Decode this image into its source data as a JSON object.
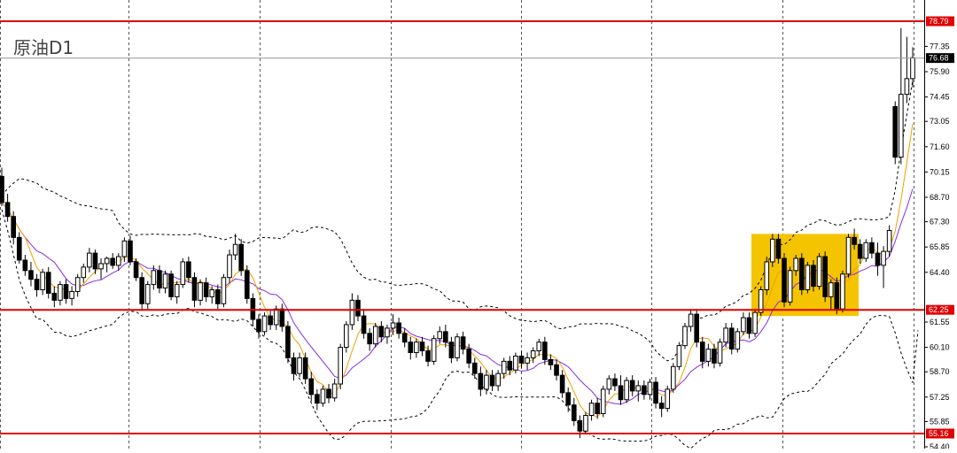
{
  "title": "原油D1",
  "chart_data": {
    "type": "candlestick",
    "symbol": "原油",
    "timeframe": "D1",
    "ylim": [
      54.4,
      78.79
    ],
    "y_ticks": [
      "77.35",
      "75.90",
      "74.45",
      "73.05",
      "71.60",
      "70.15",
      "68.70",
      "67.30",
      "65.85",
      "64.40",
      "61.55",
      "60.10",
      "58.70",
      "57.25",
      "55.85",
      "54.40"
    ],
    "horizontal_levels": [
      {
        "value": "78.79",
        "color": "#e00000"
      },
      {
        "value": "62.25",
        "color": "#e00000"
      },
      {
        "value": "55.16",
        "color": "#e00000"
      }
    ],
    "current_price": "76.68",
    "highlight_box": {
      "y_range": [
        61.9,
        66.6
      ],
      "color": "#f5c400"
    },
    "indicators": [
      "Bollinger Bands",
      "MA fast (orange)",
      "MA slow (purple)"
    ],
    "candles": [
      {
        "o": 69.9,
        "h": 70.4,
        "l": 68.2,
        "c": 68.4
      },
      {
        "o": 68.4,
        "h": 68.9,
        "l": 67.3,
        "c": 67.6
      },
      {
        "o": 67.6,
        "h": 67.9,
        "l": 66.0,
        "c": 66.4
      },
      {
        "o": 66.4,
        "h": 66.7,
        "l": 64.9,
        "c": 65.1
      },
      {
        "o": 65.1,
        "h": 65.4,
        "l": 64.2,
        "c": 64.5
      },
      {
        "o": 64.5,
        "h": 65.0,
        "l": 63.6,
        "c": 64.0
      },
      {
        "o": 64.0,
        "h": 64.3,
        "l": 63.0,
        "c": 63.4
      },
      {
        "o": 63.4,
        "h": 64.6,
        "l": 63.1,
        "c": 64.4
      },
      {
        "o": 64.4,
        "h": 64.7,
        "l": 62.9,
        "c": 63.2
      },
      {
        "o": 63.2,
        "h": 63.6,
        "l": 62.4,
        "c": 62.8
      },
      {
        "o": 62.8,
        "h": 63.9,
        "l": 62.5,
        "c": 63.7
      },
      {
        "o": 63.7,
        "h": 64.0,
        "l": 62.6,
        "c": 62.9
      },
      {
        "o": 62.9,
        "h": 63.6,
        "l": 62.5,
        "c": 63.3
      },
      {
        "o": 63.3,
        "h": 64.3,
        "l": 63.0,
        "c": 64.1
      },
      {
        "o": 64.1,
        "h": 64.9,
        "l": 63.8,
        "c": 64.7
      },
      {
        "o": 64.7,
        "h": 65.8,
        "l": 64.4,
        "c": 65.5
      },
      {
        "o": 65.5,
        "h": 65.7,
        "l": 64.3,
        "c": 64.6
      },
      {
        "o": 64.6,
        "h": 65.2,
        "l": 64.0,
        "c": 64.9
      },
      {
        "o": 64.9,
        "h": 65.3,
        "l": 64.4,
        "c": 65.2
      },
      {
        "o": 65.2,
        "h": 65.5,
        "l": 64.6,
        "c": 64.8
      },
      {
        "o": 64.8,
        "h": 65.5,
        "l": 64.5,
        "c": 65.3
      },
      {
        "o": 65.3,
        "h": 66.4,
        "l": 65.0,
        "c": 66.2
      },
      {
        "o": 66.2,
        "h": 66.5,
        "l": 64.8,
        "c": 65.0
      },
      {
        "o": 65.0,
        "h": 65.2,
        "l": 63.9,
        "c": 64.1
      },
      {
        "o": 64.1,
        "h": 64.4,
        "l": 62.2,
        "c": 62.6
      },
      {
        "o": 62.6,
        "h": 63.9,
        "l": 62.3,
        "c": 63.7
      },
      {
        "o": 63.7,
        "h": 64.8,
        "l": 63.4,
        "c": 64.5
      },
      {
        "o": 64.5,
        "h": 64.8,
        "l": 63.2,
        "c": 63.5
      },
      {
        "o": 63.5,
        "h": 64.5,
        "l": 63.2,
        "c": 64.3
      },
      {
        "o": 64.3,
        "h": 64.5,
        "l": 62.8,
        "c": 63.0
      },
      {
        "o": 63.0,
        "h": 63.9,
        "l": 62.6,
        "c": 63.7
      },
      {
        "o": 63.7,
        "h": 65.2,
        "l": 63.5,
        "c": 65.0
      },
      {
        "o": 65.0,
        "h": 65.3,
        "l": 63.8,
        "c": 64.1
      },
      {
        "o": 64.1,
        "h": 64.4,
        "l": 62.4,
        "c": 62.8
      },
      {
        "o": 62.8,
        "h": 64.0,
        "l": 62.5,
        "c": 63.8
      },
      {
        "o": 63.8,
        "h": 64.1,
        "l": 62.7,
        "c": 63.0
      },
      {
        "o": 63.0,
        "h": 63.6,
        "l": 62.6,
        "c": 63.4
      },
      {
        "o": 63.4,
        "h": 63.7,
        "l": 62.3,
        "c": 62.6
      },
      {
        "o": 62.6,
        "h": 64.3,
        "l": 62.4,
        "c": 64.1
      },
      {
        "o": 64.1,
        "h": 65.7,
        "l": 63.8,
        "c": 65.4
      },
      {
        "o": 65.4,
        "h": 66.6,
        "l": 65.1,
        "c": 66.0
      },
      {
        "o": 66.0,
        "h": 66.3,
        "l": 64.2,
        "c": 64.5
      },
      {
        "o": 64.5,
        "h": 64.8,
        "l": 62.6,
        "c": 62.9
      },
      {
        "o": 62.9,
        "h": 63.2,
        "l": 61.3,
        "c": 61.7
      },
      {
        "o": 61.7,
        "h": 62.0,
        "l": 60.6,
        "c": 61.0
      },
      {
        "o": 61.0,
        "h": 62.1,
        "l": 60.8,
        "c": 61.9
      },
      {
        "o": 61.9,
        "h": 62.2,
        "l": 61.1,
        "c": 61.4
      },
      {
        "o": 61.4,
        "h": 62.5,
        "l": 61.1,
        "c": 62.3
      },
      {
        "o": 62.3,
        "h": 62.6,
        "l": 61.0,
        "c": 61.3
      },
      {
        "o": 61.3,
        "h": 61.6,
        "l": 59.2,
        "c": 59.5
      },
      {
        "o": 59.5,
        "h": 59.8,
        "l": 58.2,
        "c": 58.6
      },
      {
        "o": 58.6,
        "h": 59.8,
        "l": 58.4,
        "c": 59.5
      },
      {
        "o": 59.5,
        "h": 59.8,
        "l": 58.0,
        "c": 58.3
      },
      {
        "o": 58.3,
        "h": 58.7,
        "l": 57.0,
        "c": 57.4
      },
      {
        "o": 57.4,
        "h": 57.7,
        "l": 56.5,
        "c": 56.9
      },
      {
        "o": 56.9,
        "h": 57.9,
        "l": 56.7,
        "c": 57.7
      },
      {
        "o": 57.7,
        "h": 58.0,
        "l": 56.9,
        "c": 57.2
      },
      {
        "o": 57.2,
        "h": 58.3,
        "l": 57.0,
        "c": 58.0
      },
      {
        "o": 58.0,
        "h": 60.3,
        "l": 57.7,
        "c": 60.1
      },
      {
        "o": 60.1,
        "h": 61.6,
        "l": 59.8,
        "c": 61.4
      },
      {
        "o": 61.4,
        "h": 63.2,
        "l": 61.1,
        "c": 62.8
      },
      {
        "o": 62.8,
        "h": 63.1,
        "l": 61.6,
        "c": 61.9
      },
      {
        "o": 61.9,
        "h": 62.3,
        "l": 60.6,
        "c": 60.9
      },
      {
        "o": 60.9,
        "h": 61.2,
        "l": 59.9,
        "c": 60.3
      },
      {
        "o": 60.3,
        "h": 61.5,
        "l": 60.1,
        "c": 61.3
      },
      {
        "o": 61.3,
        "h": 61.6,
        "l": 60.4,
        "c": 60.7
      },
      {
        "o": 60.7,
        "h": 61.4,
        "l": 60.3,
        "c": 61.2
      },
      {
        "o": 61.2,
        "h": 62.0,
        "l": 60.8,
        "c": 61.5
      },
      {
        "o": 61.5,
        "h": 61.8,
        "l": 60.6,
        "c": 60.9
      },
      {
        "o": 60.9,
        "h": 61.2,
        "l": 60.1,
        "c": 60.4
      },
      {
        "o": 60.4,
        "h": 60.7,
        "l": 59.4,
        "c": 59.8
      },
      {
        "o": 59.8,
        "h": 60.6,
        "l": 59.5,
        "c": 60.4
      },
      {
        "o": 60.4,
        "h": 60.7,
        "l": 59.6,
        "c": 59.9
      },
      {
        "o": 59.9,
        "h": 60.2,
        "l": 59.0,
        "c": 59.3
      },
      {
        "o": 59.3,
        "h": 60.8,
        "l": 59.1,
        "c": 60.6
      },
      {
        "o": 60.6,
        "h": 61.3,
        "l": 60.3,
        "c": 61.0
      },
      {
        "o": 61.0,
        "h": 61.4,
        "l": 60.1,
        "c": 60.4
      },
      {
        "o": 60.4,
        "h": 60.7,
        "l": 59.2,
        "c": 59.5
      },
      {
        "o": 59.5,
        "h": 60.9,
        "l": 59.3,
        "c": 60.7
      },
      {
        "o": 60.7,
        "h": 61.0,
        "l": 59.7,
        "c": 60.0
      },
      {
        "o": 60.0,
        "h": 60.3,
        "l": 58.9,
        "c": 59.2
      },
      {
        "o": 59.2,
        "h": 59.5,
        "l": 58.3,
        "c": 58.6
      },
      {
        "o": 58.6,
        "h": 59.0,
        "l": 57.3,
        "c": 57.7
      },
      {
        "o": 57.7,
        "h": 58.8,
        "l": 57.4,
        "c": 58.5
      },
      {
        "o": 58.5,
        "h": 58.8,
        "l": 57.6,
        "c": 57.9
      },
      {
        "o": 57.9,
        "h": 58.8,
        "l": 57.6,
        "c": 58.6
      },
      {
        "o": 58.6,
        "h": 59.5,
        "l": 58.3,
        "c": 59.3
      },
      {
        "o": 59.3,
        "h": 59.6,
        "l": 58.5,
        "c": 58.8
      },
      {
        "o": 58.8,
        "h": 59.8,
        "l": 58.6,
        "c": 59.6
      },
      {
        "o": 59.6,
        "h": 59.9,
        "l": 58.9,
        "c": 59.2
      },
      {
        "o": 59.2,
        "h": 59.8,
        "l": 58.8,
        "c": 59.5
      },
      {
        "o": 59.5,
        "h": 60.1,
        "l": 59.2,
        "c": 59.9
      },
      {
        "o": 59.9,
        "h": 60.6,
        "l": 59.6,
        "c": 60.4
      },
      {
        "o": 60.4,
        "h": 60.7,
        "l": 59.1,
        "c": 59.4
      },
      {
        "o": 59.4,
        "h": 59.7,
        "l": 58.8,
        "c": 59.1
      },
      {
        "o": 59.1,
        "h": 59.4,
        "l": 58.2,
        "c": 58.5
      },
      {
        "o": 58.5,
        "h": 58.8,
        "l": 57.2,
        "c": 57.5
      },
      {
        "o": 57.5,
        "h": 57.8,
        "l": 56.4,
        "c": 56.8
      },
      {
        "o": 56.8,
        "h": 57.2,
        "l": 55.6,
        "c": 55.9
      },
      {
        "o": 55.9,
        "h": 56.2,
        "l": 54.9,
        "c": 55.3
      },
      {
        "o": 55.3,
        "h": 56.4,
        "l": 55.1,
        "c": 56.2
      },
      {
        "o": 56.2,
        "h": 57.1,
        "l": 55.9,
        "c": 56.9
      },
      {
        "o": 56.9,
        "h": 57.2,
        "l": 56.0,
        "c": 56.3
      },
      {
        "o": 56.3,
        "h": 57.9,
        "l": 56.1,
        "c": 57.7
      },
      {
        "o": 57.7,
        "h": 58.5,
        "l": 57.4,
        "c": 58.3
      },
      {
        "o": 58.3,
        "h": 58.6,
        "l": 57.6,
        "c": 57.9
      },
      {
        "o": 57.9,
        "h": 58.5,
        "l": 56.8,
        "c": 57.1
      },
      {
        "o": 57.1,
        "h": 58.4,
        "l": 56.9,
        "c": 58.2
      },
      {
        "o": 58.2,
        "h": 58.5,
        "l": 57.3,
        "c": 57.6
      },
      {
        "o": 57.6,
        "h": 58.2,
        "l": 57.0,
        "c": 57.9
      },
      {
        "o": 57.9,
        "h": 58.2,
        "l": 57.1,
        "c": 57.4
      },
      {
        "o": 57.4,
        "h": 58.3,
        "l": 57.1,
        "c": 58.1
      },
      {
        "o": 58.1,
        "h": 58.4,
        "l": 56.6,
        "c": 56.9
      },
      {
        "o": 56.9,
        "h": 57.3,
        "l": 56.1,
        "c": 56.6
      },
      {
        "o": 56.6,
        "h": 57.9,
        "l": 56.4,
        "c": 57.7
      },
      {
        "o": 57.7,
        "h": 59.2,
        "l": 57.5,
        "c": 59.0
      },
      {
        "o": 59.0,
        "h": 60.4,
        "l": 58.8,
        "c": 60.2
      },
      {
        "o": 60.2,
        "h": 61.5,
        "l": 60.0,
        "c": 61.3
      },
      {
        "o": 61.3,
        "h": 62.3,
        "l": 61.0,
        "c": 62.0
      },
      {
        "o": 62.0,
        "h": 62.3,
        "l": 60.1,
        "c": 60.4
      },
      {
        "o": 60.4,
        "h": 60.7,
        "l": 58.9,
        "c": 59.3
      },
      {
        "o": 59.3,
        "h": 60.3,
        "l": 59.0,
        "c": 60.0
      },
      {
        "o": 60.0,
        "h": 60.3,
        "l": 58.9,
        "c": 59.2
      },
      {
        "o": 59.2,
        "h": 60.6,
        "l": 59.0,
        "c": 60.4
      },
      {
        "o": 60.4,
        "h": 61.5,
        "l": 60.1,
        "c": 61.2
      },
      {
        "o": 61.2,
        "h": 61.5,
        "l": 59.7,
        "c": 60.0
      },
      {
        "o": 60.0,
        "h": 61.2,
        "l": 59.8,
        "c": 61.0
      },
      {
        "o": 61.0,
        "h": 62.1,
        "l": 60.8,
        "c": 61.8
      },
      {
        "o": 61.8,
        "h": 62.1,
        "l": 60.6,
        "c": 60.9
      },
      {
        "o": 60.9,
        "h": 62.3,
        "l": 60.7,
        "c": 62.1
      },
      {
        "o": 62.1,
        "h": 63.6,
        "l": 61.9,
        "c": 63.4
      },
      {
        "o": 63.4,
        "h": 65.3,
        "l": 63.1,
        "c": 65.0
      },
      {
        "o": 65.0,
        "h": 66.6,
        "l": 64.7,
        "c": 66.3
      },
      {
        "o": 66.3,
        "h": 66.6,
        "l": 64.9,
        "c": 65.2
      },
      {
        "o": 65.2,
        "h": 65.5,
        "l": 62.4,
        "c": 62.7
      },
      {
        "o": 62.7,
        "h": 64.7,
        "l": 62.5,
        "c": 64.5
      },
      {
        "o": 64.5,
        "h": 65.4,
        "l": 64.2,
        "c": 65.2
      },
      {
        "o": 65.2,
        "h": 65.5,
        "l": 63.1,
        "c": 63.4
      },
      {
        "o": 63.4,
        "h": 65.0,
        "l": 63.2,
        "c": 64.8
      },
      {
        "o": 64.8,
        "h": 65.1,
        "l": 63.3,
        "c": 63.6
      },
      {
        "o": 63.6,
        "h": 65.5,
        "l": 63.4,
        "c": 65.3
      },
      {
        "o": 65.3,
        "h": 65.6,
        "l": 62.7,
        "c": 63.0
      },
      {
        "o": 63.0,
        "h": 64.0,
        "l": 62.3,
        "c": 63.8
      },
      {
        "o": 63.8,
        "h": 64.1,
        "l": 62.0,
        "c": 62.3
      },
      {
        "o": 62.3,
        "h": 64.5,
        "l": 62.1,
        "c": 64.3
      },
      {
        "o": 64.3,
        "h": 66.6,
        "l": 64.1,
        "c": 66.4
      },
      {
        "o": 66.4,
        "h": 66.9,
        "l": 65.7,
        "c": 66.0
      },
      {
        "o": 66.0,
        "h": 66.3,
        "l": 64.9,
        "c": 65.2
      },
      {
        "o": 65.2,
        "h": 66.3,
        "l": 65.0,
        "c": 66.1
      },
      {
        "o": 66.1,
        "h": 66.4,
        "l": 65.2,
        "c": 65.5
      },
      {
        "o": 65.5,
        "h": 66.1,
        "l": 64.2,
        "c": 64.8
      },
      {
        "o": 64.8,
        "h": 65.9,
        "l": 63.5,
        "c": 65.6
      },
      {
        "o": 65.6,
        "h": 67.1,
        "l": 65.3,
        "c": 66.8
      },
      {
        "o": 73.9,
        "h": 74.2,
        "l": 70.6,
        "c": 71.0
      },
      {
        "o": 71.0,
        "h": 78.4,
        "l": 70.6,
        "c": 74.6
      },
      {
        "o": 74.6,
        "h": 77.9,
        "l": 74.1,
        "c": 75.5
      },
      {
        "o": 75.5,
        "h": 77.3,
        "l": 75.0,
        "c": 76.7
      }
    ]
  }
}
